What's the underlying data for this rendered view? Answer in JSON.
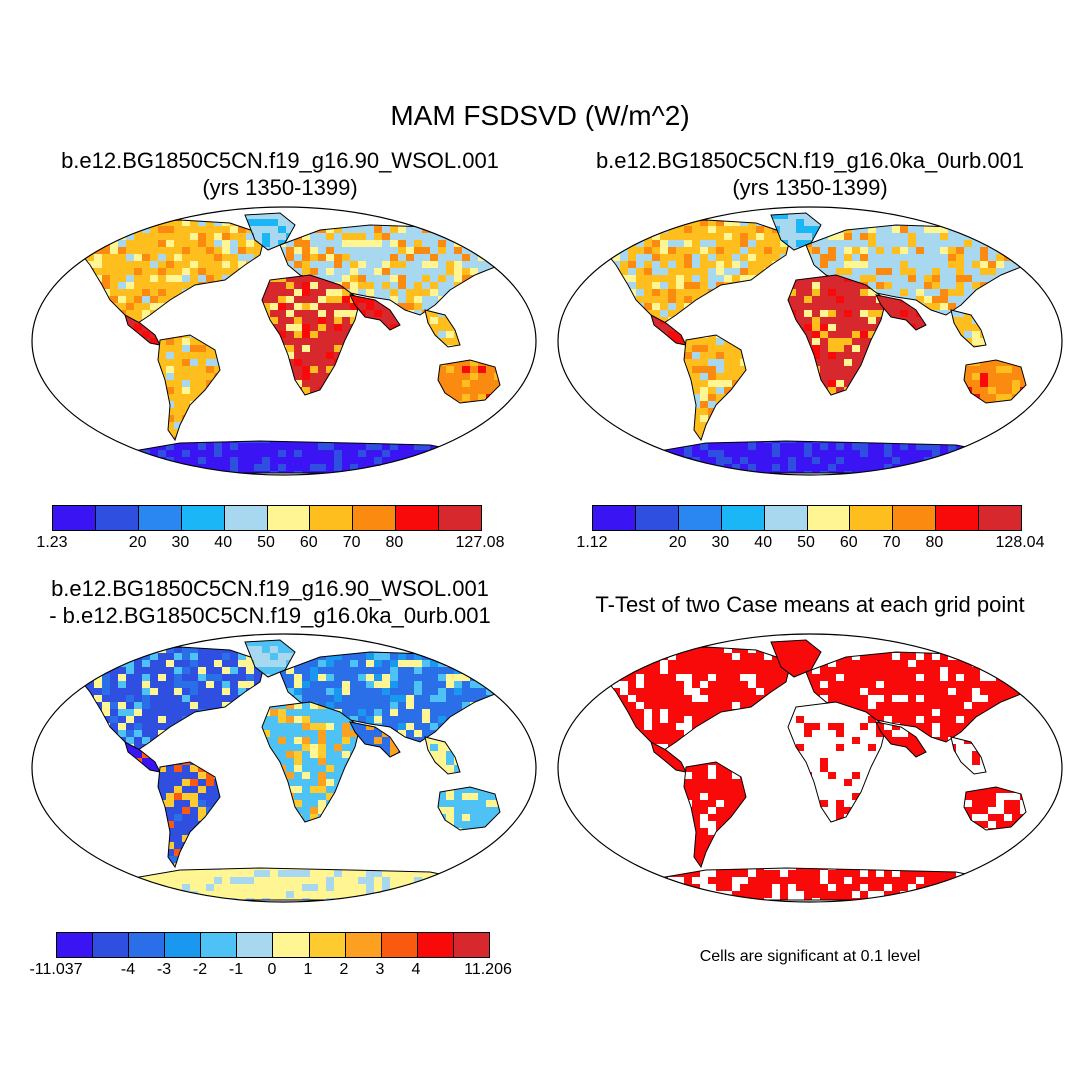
{
  "title": "MAM FSDSVD (W/m^2)",
  "panels": [
    {
      "title_line1": "b.e12.BG1850C5CN.f19_g16.90_WSOL.001",
      "title_line2": "(yrs 1350-1399)"
    },
    {
      "title_line1": "b.e12.BG1850C5CN.f19_g16.0ka_0urb.001",
      "title_line2": "(yrs 1350-1399)"
    },
    {
      "title_line1": "b.e12.BG1850C5CN.f19_g16.90_WSOL.001",
      "title_line2": "- b.e12.BG1850C5CN.f19_g16.0ka_0urb.001"
    },
    {
      "title_line1": "T-Test of two Case means at each grid point"
    }
  ],
  "colorbars": [
    {
      "labels": [
        "1.23",
        "20",
        "30",
        "40",
        "50",
        "60",
        "70",
        "80",
        "127.08"
      ],
      "colors": [
        "#3a14f2",
        "#2f4fe0",
        "#2a86f0",
        "#1bb6f5",
        "#a8d8f0",
        "#fff592",
        "#fdbe1e",
        "#fb8a10",
        "#f90a0a",
        "#d7282d"
      ]
    },
    {
      "labels": [
        "1.12",
        "20",
        "30",
        "40",
        "50",
        "60",
        "70",
        "80",
        "128.04"
      ],
      "colors": [
        "#3a14f2",
        "#2f4fe0",
        "#2a86f0",
        "#1bb6f5",
        "#a8d8f0",
        "#fff592",
        "#fdbe1e",
        "#fb8a10",
        "#f90a0a",
        "#d7282d"
      ]
    },
    {
      "labels": [
        "-11.037",
        "-4",
        "-3",
        "-2",
        "-1",
        "0",
        "1",
        "2",
        "3",
        "4",
        "11.206"
      ],
      "colors": [
        "#3a14f2",
        "#2f4fe0",
        "#2a6fe8",
        "#1a98f0",
        "#4ec2f5",
        "#a8d8f0",
        "#fff592",
        "#fdca30",
        "#fba020",
        "#fa5a10",
        "#f90a0a",
        "#d7282d"
      ]
    }
  ],
  "note": "Cells are significant at 0.1 level"
}
